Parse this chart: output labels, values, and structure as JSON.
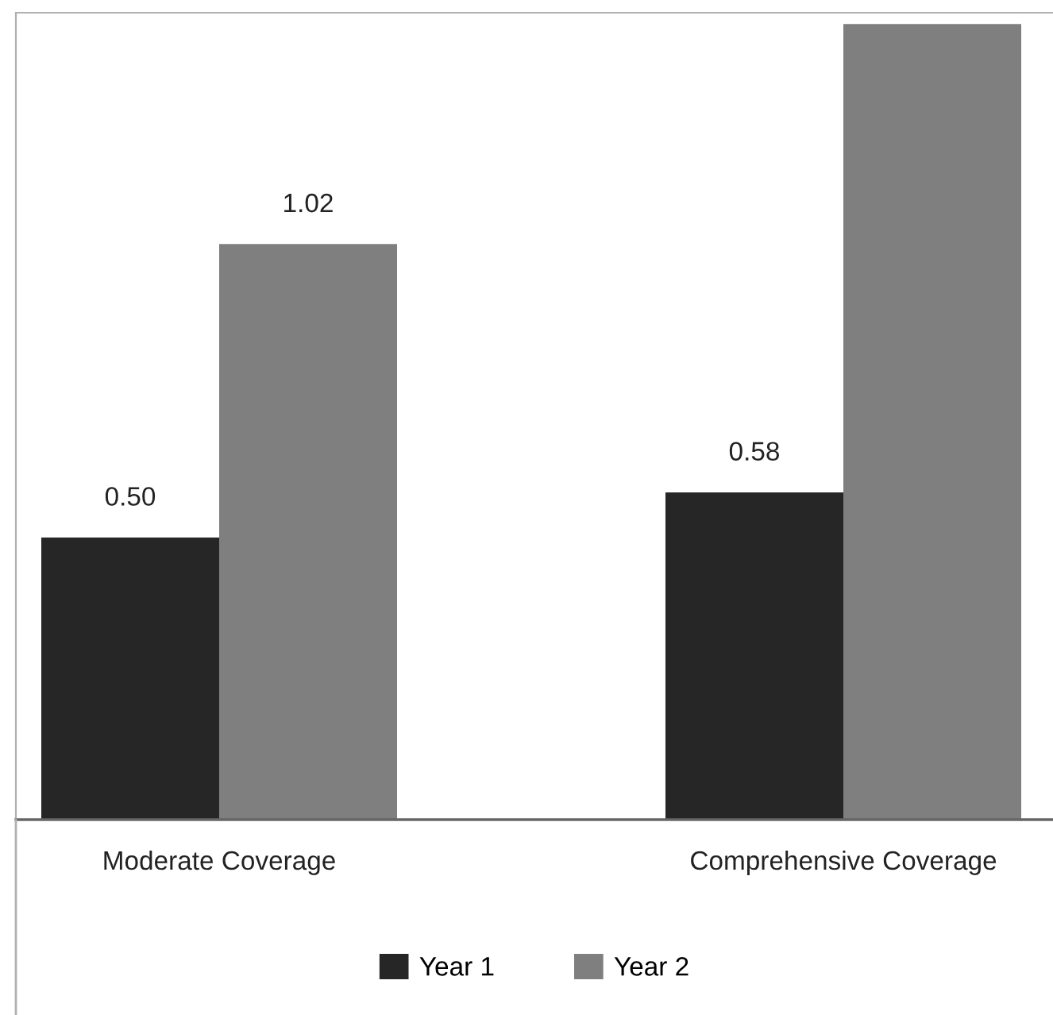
{
  "chart_data": {
    "type": "bar",
    "categories": [
      "Moderate Coverage",
      "Comprehensive Coverage"
    ],
    "series": [
      {
        "name": "Year 1",
        "color": "#262626",
        "values": [
          0.5,
          0.58
        ],
        "value_labels": [
          "0.50",
          "0.58"
        ]
      },
      {
        "name": "Year 2",
        "color": "#7f7f7f",
        "values": [
          1.02,
          1.41
        ],
        "value_labels": [
          "1.02",
          null
        ]
      }
    ],
    "ylim": [
      0,
      1.43
    ],
    "tick_labels": "x",
    "grid": false,
    "legend": "bottom"
  }
}
